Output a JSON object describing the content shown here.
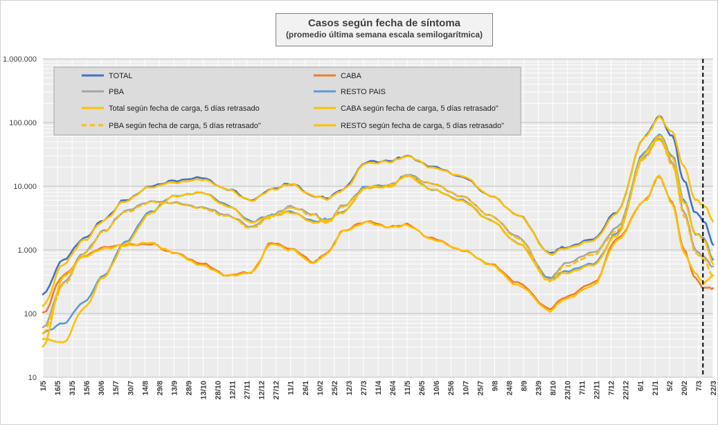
{
  "chart_data": {
    "type": "line",
    "title": "Casos según fecha de síntoma",
    "subtitle": "(promedio última semana escala semilogarítmica)",
    "yscale": "log",
    "ylim": [
      10,
      1000000
    ],
    "y_ticks": [
      10,
      100,
      1000,
      10000,
      100000,
      1000000
    ],
    "y_tick_labels": [
      "10",
      "100",
      "1.000",
      "10.000",
      "100.000",
      "1.000.000"
    ],
    "x_tick_labels": [
      "1/5",
      "16/5",
      "31/5",
      "15/6",
      "30/6",
      "15/7",
      "30/7",
      "14/8",
      "29/8",
      "13/9",
      "28/9",
      "13/10",
      "28/10",
      "12/11",
      "27/11",
      "12/12",
      "27/12",
      "11/1",
      "26/1",
      "10/2",
      "25/2",
      "12/3",
      "27/3",
      "11/4",
      "26/4",
      "11/5",
      "26/5",
      "10/6",
      "25/6",
      "10/7",
      "25/7",
      "9/8",
      "24/8",
      "8/9",
      "23/9",
      "8/10",
      "23/10",
      "7/11",
      "22/11",
      "7/12",
      "22/12",
      "6/1",
      "21/1",
      "5/2",
      "20/2",
      "7/3",
      "22/3"
    ],
    "vertical_marker_at": "7/3",
    "legend_position": "top-left",
    "colors": {
      "total": "#4472c4",
      "caba": "#ed7d31",
      "pba": "#a5a5a5",
      "resto": "#5b9bd5",
      "carga": "#ffc000"
    },
    "series": [
      {
        "name": "TOTAL",
        "color": "#4472c4",
        "style": "solid",
        "values": [
          200,
          700,
          1500,
          3000,
          6000,
          10000,
          12000,
          13500,
          9000,
          6000,
          9000,
          11000,
          7000,
          6500,
          9000,
          24000,
          25000,
          30000,
          20000,
          14000,
          7000,
          3500,
          900,
          1100,
          1500,
          4000,
          60000,
          125000,
          60000,
          12000,
          3800,
          2800,
          1200
        ]
      },
      {
        "name": "CABA",
        "color": "#ed7d31",
        "style": "solid",
        "values": [
          100,
          400,
          800,
          1100,
          1200,
          1250,
          900,
          600,
          400,
          450,
          1300,
          1050,
          650,
          900,
          2000,
          2800,
          2300,
          2500,
          1500,
          1000,
          600,
          300,
          120,
          180,
          300,
          1500,
          6000,
          14000,
          5500,
          1000,
          350,
          250,
          250
        ]
      },
      {
        "name": "PBA",
        "color": "#a5a5a5",
        "style": "solid",
        "values": [
          60,
          300,
          900,
          2000,
          4000,
          5800,
          5500,
          4600,
          3500,
          2300,
          3500,
          4800,
          3600,
          2700,
          5000,
          9500,
          10500,
          15000,
          11000,
          7000,
          3500,
          1600,
          350,
          600,
          900,
          2200,
          30000,
          58000,
          24000,
          4000,
          1000,
          750,
          550
        ]
      },
      {
        "name": "RESTO PAIS",
        "color": "#5b9bd5",
        "style": "solid",
        "values": [
          50,
          70,
          150,
          400,
          1300,
          4000,
          7000,
          8000,
          5000,
          2800,
          3500,
          4000,
          2800,
          3000,
          4000,
          10000,
          10000,
          15000,
          9000,
          6000,
          3000,
          1300,
          350,
          450,
          600,
          1800,
          35000,
          65000,
          30000,
          6000,
          1800,
          1500,
          700
        ]
      },
      {
        "name": "Total según fecha de carga, 5 días retrasado",
        "color": "#ffc000",
        "style": "solid",
        "values": [
          130,
          600,
          1400,
          2900,
          5800,
          9600,
          11500,
          13000,
          8800,
          5900,
          8800,
          10800,
          7000,
          6300,
          8700,
          23000,
          24000,
          29500,
          19800,
          14200,
          7200,
          3600,
          850,
          1050,
          1400,
          3800,
          58000,
          120000,
          70000,
          20000,
          6000,
          5000,
          2800
        ]
      },
      {
        "name": "CABA según fecha de carga, 5 días retrasado\"",
        "color": "#ffc000",
        "style": "solid",
        "values": [
          30,
          380,
          780,
          1050,
          1180,
          1280,
          920,
          580,
          390,
          440,
          1250,
          1000,
          620,
          870,
          1950,
          2700,
          2250,
          2450,
          1450,
          980,
          580,
          280,
          110,
          170,
          280,
          1400,
          5800,
          14500,
          5200,
          900,
          420,
          300,
          400
        ]
      },
      {
        "name": "PBA según fecha de carga, 5 días retrasado\"",
        "color": "#ffc000",
        "style": "dashed",
        "values": [
          50,
          280,
          850,
          1950,
          3900,
          5600,
          5400,
          4500,
          3400,
          2200,
          3300,
          4600,
          3500,
          2600,
          4800,
          9200,
          10200,
          14500,
          10800,
          6800,
          3400,
          1500,
          320,
          560,
          850,
          2000,
          28000,
          55000,
          22000,
          3500,
          900,
          700,
          380
        ]
      },
      {
        "name": "RESTO según fecha de carga, 5 días retrasado\"",
        "color": "#ffc000",
        "style": "solid",
        "values": [
          40,
          35,
          120,
          380,
          1200,
          3800,
          6800,
          7800,
          4900,
          2700,
          3400,
          3900,
          2700,
          2900,
          3900,
          9600,
          9800,
          14700,
          8800,
          5900,
          2900,
          1250,
          330,
          430,
          580,
          1700,
          33000,
          62000,
          28000,
          5500,
          1800,
          1400,
          600
        ]
      }
    ],
    "series_x_positions": [
      0,
      1.4,
      2.8,
      4.2,
      5.6,
      7.4,
      8.9,
      10.9,
      12.7,
      14.3,
      15.7,
      17.0,
      18.6,
      19.5,
      20.6,
      22.2,
      23.8,
      25.0,
      26.7,
      28.8,
      30.7,
      32.6,
      34.8,
      35.8,
      37.8,
      39.4,
      41.3,
      42.3,
      43.2,
      44.0,
      44.8,
      45.4,
      46.0
    ]
  }
}
